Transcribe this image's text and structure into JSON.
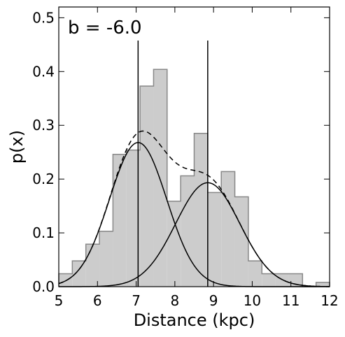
{
  "chart_data": {
    "type": "histogram",
    "title": "",
    "annotation": "b = -6.0",
    "xlabel": "Distance (kpc)",
    "ylabel": "p(x)",
    "xlim": [
      5,
      12
    ],
    "ylim": [
      0,
      0.52
    ],
    "xticks": [
      5,
      6,
      7,
      8,
      9,
      10,
      11,
      12
    ],
    "xtick_labels": [
      "5",
      "6",
      "7",
      "8",
      "9",
      "10",
      "11",
      "12"
    ],
    "yticks": [
      0.0,
      0.1,
      0.2,
      0.3,
      0.4,
      0.5
    ],
    "ytick_labels": [
      "0.0",
      "0.1",
      "0.2",
      "0.3",
      "0.4",
      "0.5"
    ],
    "grid": false,
    "histogram": {
      "bin_edges": [
        5.0,
        5.35,
        5.7,
        6.05,
        6.4,
        6.75,
        7.1,
        7.45,
        7.8,
        8.15,
        8.5,
        8.85,
        9.2,
        9.55,
        9.9,
        10.25,
        10.6,
        10.95,
        11.3,
        11.65,
        12.0
      ],
      "values": [
        0.024,
        0.048,
        0.079,
        0.103,
        0.246,
        0.254,
        0.373,
        0.404,
        0.159,
        0.206,
        0.285,
        0.175,
        0.214,
        0.167,
        0.048,
        0.024,
        0.024,
        0.024,
        0.0,
        0.008
      ],
      "fill_color": "#cccccc",
      "edge_color": "#888888"
    },
    "components": [
      {
        "mean": 7.05,
        "sigma": 0.74,
        "weight": 0.497,
        "style": "solid"
      },
      {
        "mean": 8.85,
        "sigma": 0.83,
        "weight": 0.402,
        "style": "solid"
      }
    ],
    "sum_curve_style": "dashed",
    "vertical_lines": [
      7.05,
      8.85
    ],
    "line_color": "#000000"
  }
}
